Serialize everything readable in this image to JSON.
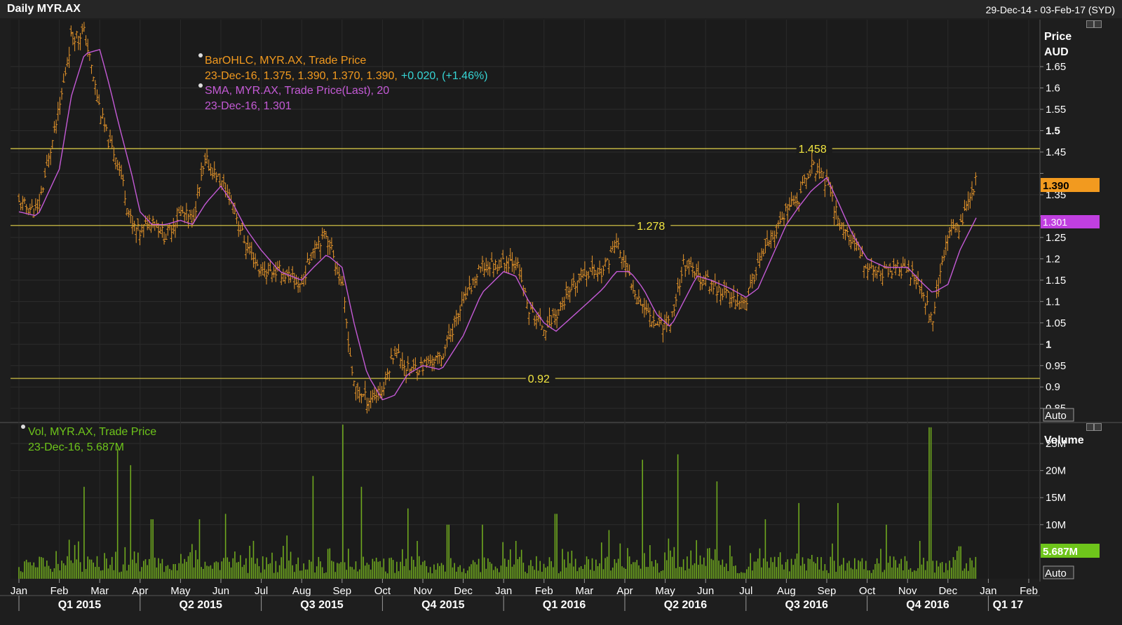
{
  "header": {
    "title": "Daily MYR.AX",
    "date_range": "29-Dec-14 - 03-Feb-17 (SYD)"
  },
  "price_panel": {
    "axis_title_1": "Price",
    "axis_title_2": "AUD",
    "auto_label": "Auto",
    "legend": {
      "line1": "BarOHLC, MYR.AX, Trade Price",
      "line2_main": "23-Dec-16, 1.375, 1.390, 1.370, 1.390,",
      "line2_change": "+0.020, (+1.46%)",
      "line3": "SMA, MYR.AX, Trade Price(Last),  20",
      "line4": "23-Dec-16, 1.301"
    },
    "last_price_tag": "1.390",
    "sma_tag": "1.301",
    "hlines": [
      {
        "value": 1.458,
        "label": "1.458",
        "label_x_month": 19.3
      },
      {
        "value": 1.278,
        "label": "1.278",
        "label_x_month": 15.3
      },
      {
        "value": 0.92,
        "label": "0.92",
        "label_x_month": 12.6
      }
    ]
  },
  "volume_panel": {
    "axis_title": "Volume",
    "auto_label": "Auto",
    "legend_line1": "Vol, MYR.AX, Trade Price",
    "legend_line2": "23-Dec-16, 5.687M",
    "last_volume_tag": "5.687M"
  },
  "colors": {
    "background": "#1e1e1e",
    "bars": "#e8962a",
    "sma": "#c45ad6",
    "hline": "#e3d24a",
    "volume": "#6fa81f",
    "price_tag": "#f29a1f",
    "sma_tag": "#c03fe0",
    "volume_tag": "#6ec51b",
    "change_text": "#36d5d5"
  },
  "time_axis": {
    "months": [
      "Jan",
      "Feb",
      "Mar",
      "Apr",
      "May",
      "Jun",
      "Jul",
      "Aug",
      "Sep",
      "Oct",
      "Nov",
      "Dec",
      "Jan",
      "Feb",
      "Mar",
      "Apr",
      "May",
      "Jun",
      "Jul",
      "Aug",
      "Sep",
      "Oct",
      "Nov",
      "Dec",
      "Jan",
      "Feb"
    ],
    "quarters": [
      "Q1 2015",
      "Q2 2015",
      "Q3 2015",
      "Q4 2015",
      "Q1 2016",
      "Q2 2016",
      "Q3 2016",
      "Q4 2016",
      "Q1 17"
    ]
  },
  "chart_data": [
    {
      "type": "line",
      "title": "Daily MYR.AX",
      "ylabel": "Price AUD",
      "y_ticks": [
        0.85,
        0.9,
        0.95,
        1,
        1.05,
        1.1,
        1.15,
        1.2,
        1.25,
        1.3,
        1.35,
        1.4,
        1.45,
        1.5,
        1.55,
        1.6,
        1.65
      ],
      "y_tick_labels": [
        "0.85",
        "0.9",
        "0.95",
        "1",
        "1.05",
        "1.1",
        "1.15",
        "1.2",
        "1.25",
        "",
        "1.35",
        "",
        "1.45",
        "1.5",
        "1.55",
        "1.6",
        "1.65"
      ],
      "ylim": [
        0.82,
        1.76
      ],
      "x": [
        "2015-01-01",
        "2015-01-15",
        "2015-02-01",
        "2015-02-10",
        "2015-02-20",
        "2015-03-01",
        "2015-03-08",
        "2015-03-15",
        "2015-03-25",
        "2015-04-01",
        "2015-04-10",
        "2015-04-20",
        "2015-05-01",
        "2015-05-10",
        "2015-05-20",
        "2015-06-01",
        "2015-06-10",
        "2015-06-20",
        "2015-07-01",
        "2015-07-15",
        "2015-08-01",
        "2015-08-10",
        "2015-08-20",
        "2015-09-01",
        "2015-09-10",
        "2015-09-20",
        "2015-10-01",
        "2015-10-10",
        "2015-10-20",
        "2015-11-01",
        "2015-11-15",
        "2015-12-01",
        "2015-12-15",
        "2016-01-01",
        "2016-01-10",
        "2016-01-20",
        "2016-02-01",
        "2016-02-10",
        "2016-03-01",
        "2016-03-15",
        "2016-03-25",
        "2016-04-05",
        "2016-04-15",
        "2016-04-25",
        "2016-05-05",
        "2016-05-15",
        "2016-05-25",
        "2016-06-05",
        "2016-06-20",
        "2016-07-01",
        "2016-07-10",
        "2016-07-20",
        "2016-08-01",
        "2016-08-10",
        "2016-08-20",
        "2016-09-01",
        "2016-09-10",
        "2016-09-20",
        "2016-10-01",
        "2016-10-15",
        "2016-11-01",
        "2016-11-10",
        "2016-11-20",
        "2016-12-01",
        "2016-12-10",
        "2016-12-23"
      ],
      "series": [
        {
          "name": "BarOHLC, MYR.AX, Trade Price",
          "values": [
            1.33,
            1.31,
            1.55,
            1.72,
            1.73,
            1.55,
            1.47,
            1.43,
            1.28,
            1.26,
            1.3,
            1.25,
            1.31,
            1.29,
            1.43,
            1.38,
            1.33,
            1.23,
            1.17,
            1.17,
            1.14,
            1.23,
            1.26,
            1.14,
            0.9,
            0.87,
            0.89,
            0.99,
            0.94,
            0.95,
            0.97,
            1.1,
            1.18,
            1.19,
            1.2,
            1.08,
            1.04,
            1.07,
            1.17,
            1.17,
            1.24,
            1.15,
            1.09,
            1.05,
            1.05,
            1.19,
            1.16,
            1.14,
            1.11,
            1.1,
            1.19,
            1.24,
            1.31,
            1.34,
            1.42,
            1.38,
            1.29,
            1.24,
            1.18,
            1.17,
            1.18,
            1.13,
            1.06,
            1.26,
            1.28,
            1.39
          ]
        },
        {
          "name": "SMA, MYR.AX, Trade Price(Last), 20",
          "values": [
            1.31,
            1.3,
            1.41,
            1.58,
            1.68,
            1.69,
            1.61,
            1.52,
            1.4,
            1.31,
            1.28,
            1.28,
            1.29,
            1.28,
            1.33,
            1.37,
            1.33,
            1.27,
            1.22,
            1.17,
            1.15,
            1.18,
            1.21,
            1.18,
            1.05,
            0.93,
            0.87,
            0.88,
            0.93,
            0.95,
            0.94,
            1.02,
            1.12,
            1.17,
            1.16,
            1.1,
            1.05,
            1.03,
            1.09,
            1.13,
            1.17,
            1.17,
            1.13,
            1.07,
            1.04,
            1.1,
            1.16,
            1.15,
            1.13,
            1.11,
            1.13,
            1.2,
            1.28,
            1.32,
            1.36,
            1.39,
            1.33,
            1.26,
            1.2,
            1.18,
            1.18,
            1.15,
            1.12,
            1.14,
            1.22,
            1.3
          ]
        }
      ]
    },
    {
      "type": "bar",
      "title": "Vol, MYR.AX, Trade Price",
      "ylabel": "Volume",
      "y_ticks": [
        10,
        15,
        20,
        25
      ],
      "y_tick_labels": [
        "10M",
        "15M",
        "20M",
        "25M"
      ],
      "ylim": [
        0,
        28.5
      ],
      "x": [
        "2015-02-20",
        "2015-03-15",
        "2015-03-25",
        "2015-04-10",
        "2015-05-15",
        "2015-06-05",
        "2015-07-20",
        "2015-08-10",
        "2015-09-01",
        "2015-09-15",
        "2015-10-20",
        "2015-11-20",
        "2015-12-15",
        "2016-01-10",
        "2016-02-10",
        "2016-03-20",
        "2016-04-15",
        "2016-05-10",
        "2016-06-10",
        "2016-07-15",
        "2016-08-10",
        "2016-09-10",
        "2016-10-15",
        "2016-11-10",
        "2016-11-18",
        "2016-12-10",
        "2016-12-23"
      ],
      "values": [
        17,
        24,
        21,
        11,
        11,
        12,
        8,
        19,
        28.5,
        17,
        13,
        10,
        10,
        7,
        12,
        9,
        22,
        23,
        18,
        11,
        14,
        14,
        10,
        7,
        28,
        6,
        5.687
      ]
    }
  ]
}
